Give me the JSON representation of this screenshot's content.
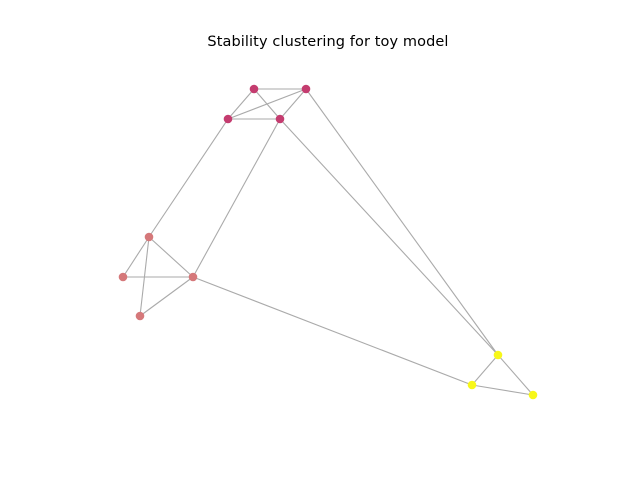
{
  "title": "Stability clustering for toy model",
  "graph": {
    "edge_color": "#aaaaaa",
    "clusters": [
      {
        "id": "cluster-1",
        "color": "#c43c6f"
      },
      {
        "id": "cluster-2",
        "color": "#d5787a"
      },
      {
        "id": "cluster-3",
        "color": "#f7f719"
      }
    ],
    "nodes": [
      {
        "id": 0,
        "cluster": "cluster-1"
      },
      {
        "id": 1,
        "cluster": "cluster-1"
      },
      {
        "id": 2,
        "cluster": "cluster-1"
      },
      {
        "id": 3,
        "cluster": "cluster-1"
      },
      {
        "id": 4,
        "cluster": "cluster-2"
      },
      {
        "id": 5,
        "cluster": "cluster-2"
      },
      {
        "id": 6,
        "cluster": "cluster-2"
      },
      {
        "id": 7,
        "cluster": "cluster-2"
      },
      {
        "id": 8,
        "cluster": "cluster-3"
      },
      {
        "id": 9,
        "cluster": "cluster-3"
      },
      {
        "id": 10,
        "cluster": "cluster-3"
      }
    ],
    "edges": [
      [
        0,
        1
      ],
      [
        0,
        2
      ],
      [
        0,
        3
      ],
      [
        1,
        2
      ],
      [
        1,
        3
      ],
      [
        2,
        3
      ],
      [
        4,
        5
      ],
      [
        4,
        6
      ],
      [
        4,
        7
      ],
      [
        5,
        6
      ],
      [
        5,
        7
      ],
      [
        8,
        9
      ],
      [
        8,
        10
      ],
      [
        9,
        10
      ],
      [
        2,
        4
      ],
      [
        3,
        5
      ],
      [
        3,
        9
      ],
      [
        1,
        9
      ],
      [
        5,
        8
      ]
    ]
  }
}
